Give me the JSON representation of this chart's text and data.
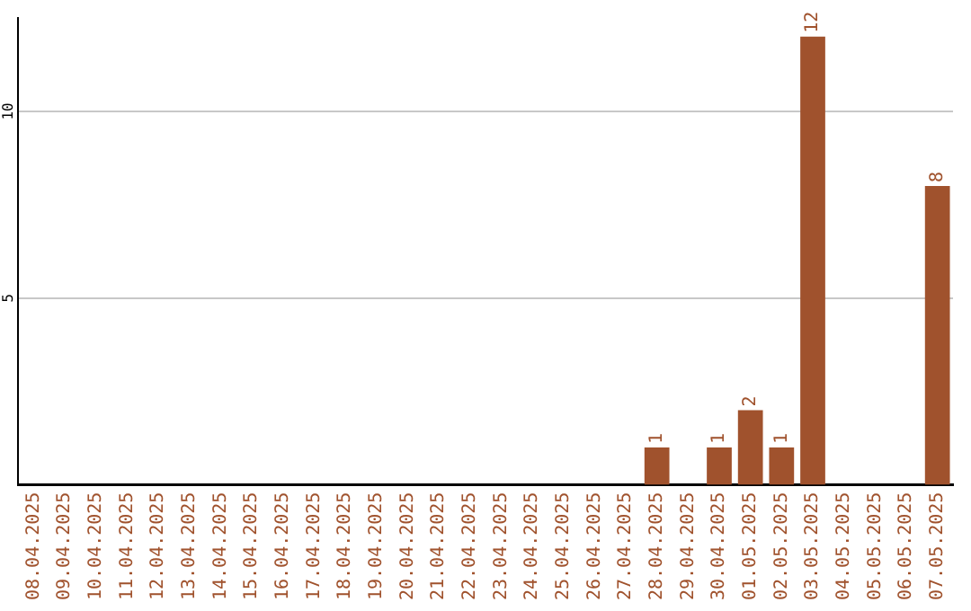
{
  "chart_data": {
    "type": "bar",
    "categories": [
      "08.04.2025",
      "09.04.2025",
      "10.04.2025",
      "11.04.2025",
      "12.04.2025",
      "13.04.2025",
      "14.04.2025",
      "15.04.2025",
      "16.04.2025",
      "17.04.2025",
      "18.04.2025",
      "19.04.2025",
      "20.04.2025",
      "21.04.2025",
      "22.04.2025",
      "23.04.2025",
      "24.04.2025",
      "25.04.2025",
      "26.04.2025",
      "27.04.2025",
      "28.04.2025",
      "29.04.2025",
      "30.04.2025",
      "01.05.2025",
      "02.05.2025",
      "03.05.2025",
      "04.05.2025",
      "05.05.2025",
      "06.05.2025",
      "07.05.2025"
    ],
    "values": [
      0,
      0,
      0,
      0,
      0,
      0,
      0,
      0,
      0,
      0,
      0,
      0,
      0,
      0,
      0,
      0,
      0,
      0,
      0,
      0,
      1,
      0,
      1,
      2,
      1,
      12,
      0,
      0,
      0,
      8
    ],
    "value_labels": [
      null,
      null,
      null,
      null,
      null,
      null,
      null,
      null,
      null,
      null,
      null,
      null,
      null,
      null,
      null,
      null,
      null,
      null,
      null,
      null,
      "1",
      null,
      "1",
      "2",
      "1",
      "12",
      null,
      null,
      null,
      "8"
    ],
    "color": "#a0522d",
    "ylim": [
      0,
      12.5
    ],
    "yticks": [
      5,
      10
    ],
    "grid": "y",
    "legend": false
  }
}
